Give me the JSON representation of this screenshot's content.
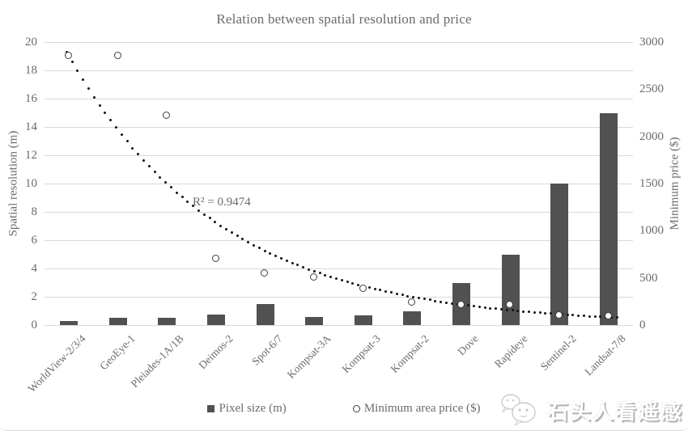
{
  "title": "Relation between spatial resolution and price",
  "annotation": {
    "r_squared_label": "R² = 0.9474"
  },
  "legend": {
    "bar_label": "Pixel size (m)",
    "scatter_label": "Minimum area price ($)"
  },
  "watermark": {
    "text": "石头人看遥感",
    "logo": "wechat-bubbles-icon"
  },
  "colors": {
    "bar": "#515151",
    "scatter_stroke": "#3f3f3f",
    "trendline": "#141414",
    "gridline": "#d9d9d9",
    "text": "#6b6b6b"
  },
  "chart_data": {
    "type": "bar",
    "subtype": "combo-bar-scatter-with-trendline",
    "title": "Relation between spatial resolution and price",
    "categories": [
      "WorldView-2/3/4",
      "GeoEye-1",
      "Pleiades-1A/1B",
      "Deimos-2",
      "Spot-6/7",
      "Kompsat-3A",
      "Kompsat-3",
      "Kompsat-2",
      "Dove",
      "Rapideye",
      "Sentinel-2",
      "Landsat-7/8"
    ],
    "series": [
      {
        "name": "Pixel size (m)",
        "type": "bar",
        "axis": "left",
        "values": [
          0.3,
          0.5,
          0.5,
          0.75,
          1.5,
          0.55,
          0.7,
          1.0,
          3.0,
          5.0,
          10.0,
          15.0
        ]
      },
      {
        "name": "Minimum area price ($)",
        "type": "scatter",
        "axis": "right",
        "values": [
          2850,
          2850,
          2220,
          700,
          550,
          500,
          380,
          240,
          215,
          215,
          100,
          95
        ]
      }
    ],
    "trendline": {
      "type": "exponential",
      "applies_to": "Minimum area price ($)",
      "style": "dotted",
      "r_squared": 0.9474,
      "start_value_left_axis_units": 19.0,
      "end_value_left_axis_units": 0.55
    },
    "axes": {
      "left": {
        "label": "Spatial resolution (m)",
        "min": 0,
        "max": 20,
        "step": 2,
        "ticks": [
          0,
          2,
          4,
          6,
          8,
          10,
          12,
          14,
          16,
          18,
          20
        ]
      },
      "right": {
        "label": "Minimum price ($)",
        "min": 0,
        "max": 3000,
        "step": 500,
        "ticks": [
          0,
          500,
          1000,
          1500,
          2000,
          2500,
          3000
        ]
      }
    },
    "grid": "horizontal",
    "legend_position": "bottom"
  }
}
